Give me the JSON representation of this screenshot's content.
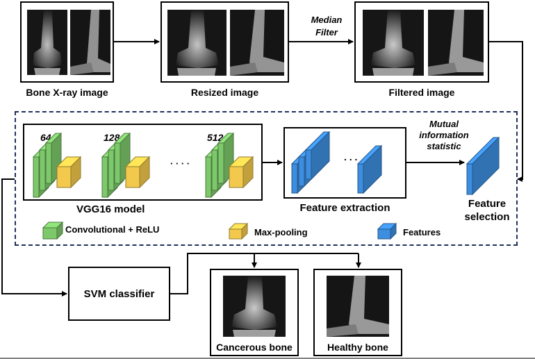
{
  "stages": {
    "input_label": "Bone X-ray image",
    "resized_label": "Resized image",
    "filtered_label": "Filtered image",
    "filter_step": "Median\nFilter"
  },
  "vgg": {
    "model_label": "VGG16 model",
    "block1_filters": "64",
    "block2_filters": "128",
    "block3_filters": "512",
    "ellipsis": "· · · ·"
  },
  "features": {
    "extraction_label": "Feature extraction",
    "ellipsis": ". . .",
    "mi_label": "Mutual\ninformation\nstatistic",
    "selection_label": "Feature\nselection"
  },
  "legend": {
    "conv_label": "Convolutional + ReLU",
    "pool_label": "Max-pooling",
    "features_label": "Features"
  },
  "classifier": {
    "label": "SVM classifier"
  },
  "outputs": {
    "cancerous_label": "Cancerous bone",
    "healthy_label": "Healthy bone"
  },
  "colors": {
    "conv": "#7dc86a",
    "pool": "#f2c94c",
    "features": "#3d8ee0",
    "dashed_border": "#1f2f5c"
  }
}
